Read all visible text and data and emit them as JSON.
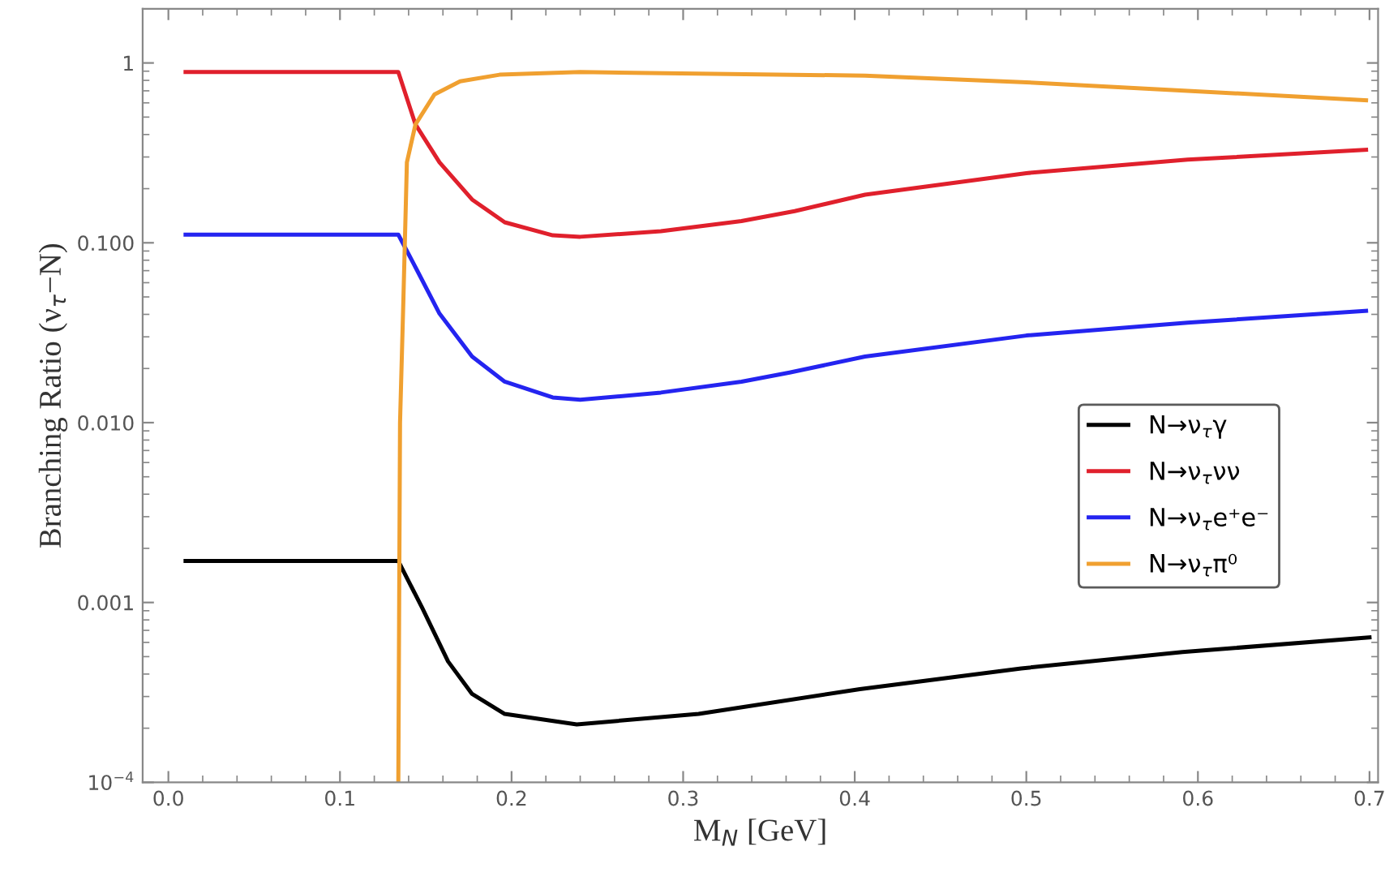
{
  "chart_data": {
    "type": "line",
    "xlabel": "M$_{N}$ [GeV]",
    "ylabel": "Branching Ratio (ν$_{τ}$−N)",
    "log": "y",
    "xlim": [
      -0.015,
      0.705
    ],
    "ylim": [
      0.0001,
      2
    ],
    "xticks": [
      {
        "value": 0,
        "label": "0.0"
      },
      0.1,
      0.2,
      0.3,
      0.4,
      0.5,
      0.6,
      0.7
    ],
    "yticks": [
      {
        "value": 0.0001,
        "label": "10$^{−4}$"
      },
      0.001,
      {
        "value": 0.01,
        "label": "0.010"
      },
      {
        "value": 0.1,
        "label": "0.100"
      },
      1
    ],
    "grid": false,
    "legend": "right",
    "marker": "none",
    "line_style": "solid",
    "series": [
      {
        "name": "N→ν$_{τ}$γ",
        "color": "#000000",
        "x": [
          0.01,
          0.134,
          0.148,
          0.163,
          0.177,
          0.196,
          0.238,
          0.309,
          0.403,
          0.497,
          0.591,
          0.7
        ],
        "values": [
          0.0017,
          0.0017,
          0.00093,
          0.00047,
          0.00031,
          0.00024,
          0.00021,
          0.00024,
          0.00033,
          0.00043,
          0.00053,
          0.00064
        ]
      },
      {
        "name": "N→ν$_{τ}$νν",
        "color": "#e0202c",
        "x": [
          0.01,
          0.134,
          0.144,
          0.158,
          0.177,
          0.196,
          0.224,
          0.24,
          0.287,
          0.334,
          0.365,
          0.406,
          0.5,
          0.594,
          0.698
        ],
        "values": [
          0.89,
          0.89,
          0.455,
          0.28,
          0.174,
          0.13,
          0.11,
          0.108,
          0.116,
          0.132,
          0.15,
          0.185,
          0.244,
          0.29,
          0.329
        ]
      },
      {
        "name": "N→ν$_{τ}$e⁺e⁻",
        "color": "#2424f0",
        "x": [
          0.01,
          0.134,
          0.145,
          0.158,
          0.177,
          0.196,
          0.224,
          0.24,
          0.287,
          0.334,
          0.362,
          0.406,
          0.5,
          0.594,
          0.698
        ],
        "values": [
          0.111,
          0.111,
          0.0701,
          0.0404,
          0.0233,
          0.0169,
          0.0138,
          0.0134,
          0.0147,
          0.0169,
          0.019,
          0.0233,
          0.0305,
          0.036,
          0.0418
        ]
      },
      {
        "name": "N→ν$_{τ}$π⁰",
        "color": "#f0a030",
        "x": [
          0.134,
          0.1345,
          0.135,
          0.137,
          0.139,
          0.144,
          0.155,
          0.17,
          0.193,
          0.24,
          0.28,
          0.406,
          0.5,
          0.594,
          0.698
        ],
        "values": [
          0.0001,
          0.001,
          0.01,
          0.05,
          0.28,
          0.455,
          0.667,
          0.79,
          0.86,
          0.89,
          0.88,
          0.85,
          0.78,
          0.7,
          0.62
        ]
      }
    ]
  }
}
